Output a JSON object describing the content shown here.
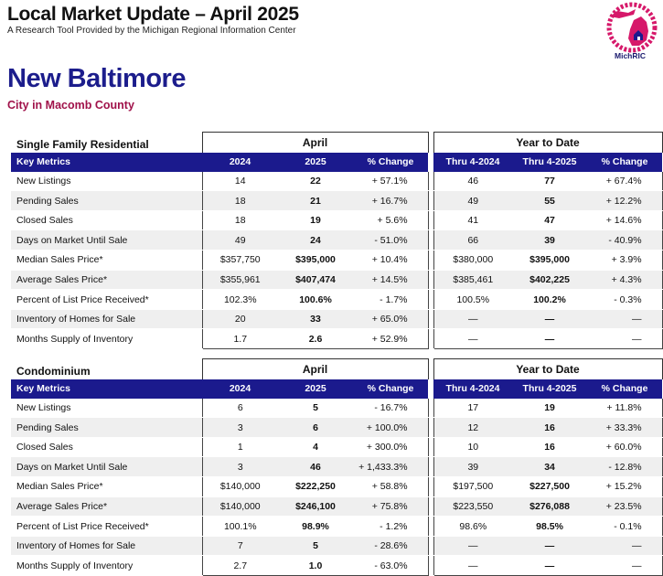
{
  "header": {
    "title": "Local Market Update – April 2025",
    "subtitle": "A Research Tool Provided by the Michigan Regional Information Center",
    "logo_text": "MichRIC",
    "logo_ring_text": "Michigan Regional Information Center",
    "brand_color": "#1b1a8d",
    "logo_color": "#d6186a"
  },
  "location": {
    "city": "New Baltimore",
    "county": "City in Macomb County"
  },
  "columns": {
    "key_metrics": "Key Metrics",
    "group_april": "April",
    "group_ytd": "Year to Date",
    "y2024": "2024",
    "y2025": "2025",
    "pct_change": "% Change",
    "ytd_2024": "Thru 4-2024",
    "ytd_2025": "Thru 4-2025"
  },
  "sections": [
    {
      "title": "Single Family Residential",
      "rows": [
        {
          "metric": "New Listings",
          "a2024": "14",
          "a2025": "22",
          "achg": "+ 57.1%",
          "y2024": "46",
          "y2025": "77",
          "ychg": "+ 67.4%"
        },
        {
          "metric": "Pending Sales",
          "a2024": "18",
          "a2025": "21",
          "achg": "+ 16.7%",
          "y2024": "49",
          "y2025": "55",
          "ychg": "+ 12.2%"
        },
        {
          "metric": "Closed Sales",
          "a2024": "18",
          "a2025": "19",
          "achg": "+ 5.6%",
          "y2024": "41",
          "y2025": "47",
          "ychg": "+ 14.6%"
        },
        {
          "metric": "Days on Market Until Sale",
          "a2024": "49",
          "a2025": "24",
          "achg": "- 51.0%",
          "y2024": "66",
          "y2025": "39",
          "ychg": "- 40.9%"
        },
        {
          "metric": "Median Sales Price*",
          "a2024": "$357,750",
          "a2025": "$395,000",
          "achg": "+ 10.4%",
          "y2024": "$380,000",
          "y2025": "$395,000",
          "ychg": "+ 3.9%"
        },
        {
          "metric": "Average Sales Price*",
          "a2024": "$355,961",
          "a2025": "$407,474",
          "achg": "+ 14.5%",
          "y2024": "$385,461",
          "y2025": "$402,225",
          "ychg": "+ 4.3%"
        },
        {
          "metric": "Percent of List Price Received*",
          "a2024": "102.3%",
          "a2025": "100.6%",
          "achg": "- 1.7%",
          "y2024": "100.5%",
          "y2025": "100.2%",
          "ychg": "- 0.3%"
        },
        {
          "metric": "Inventory of Homes for Sale",
          "a2024": "20",
          "a2025": "33",
          "achg": "+ 65.0%",
          "y2024": "—",
          "y2025": "—",
          "ychg": "—"
        },
        {
          "metric": "Months Supply of Inventory",
          "a2024": "1.7",
          "a2025": "2.6",
          "achg": "+ 52.9%",
          "y2024": "—",
          "y2025": "—",
          "ychg": "—"
        }
      ]
    },
    {
      "title": "Condominium",
      "rows": [
        {
          "metric": "New Listings",
          "a2024": "6",
          "a2025": "5",
          "achg": "- 16.7%",
          "y2024": "17",
          "y2025": "19",
          "ychg": "+ 11.8%"
        },
        {
          "metric": "Pending Sales",
          "a2024": "3",
          "a2025": "6",
          "achg": "+ 100.0%",
          "y2024": "12",
          "y2025": "16",
          "ychg": "+ 33.3%"
        },
        {
          "metric": "Closed Sales",
          "a2024": "1",
          "a2025": "4",
          "achg": "+ 300.0%",
          "y2024": "10",
          "y2025": "16",
          "ychg": "+ 60.0%"
        },
        {
          "metric": "Days on Market Until Sale",
          "a2024": "3",
          "a2025": "46",
          "achg": "+ 1,433.3%",
          "y2024": "39",
          "y2025": "34",
          "ychg": "- 12.8%"
        },
        {
          "metric": "Median Sales Price*",
          "a2024": "$140,000",
          "a2025": "$222,250",
          "achg": "+ 58.8%",
          "y2024": "$197,500",
          "y2025": "$227,500",
          "ychg": "+ 15.2%"
        },
        {
          "metric": "Average Sales Price*",
          "a2024": "$140,000",
          "a2025": "$246,100",
          "achg": "+ 75.8%",
          "y2024": "$223,550",
          "y2025": "$276,088",
          "ychg": "+ 23.5%"
        },
        {
          "metric": "Percent of List Price Received*",
          "a2024": "100.1%",
          "a2025": "98.9%",
          "achg": "- 1.2%",
          "y2024": "98.6%",
          "y2025": "98.5%",
          "ychg": "- 0.1%"
        },
        {
          "metric": "Inventory of Homes for Sale",
          "a2024": "7",
          "a2025": "5",
          "achg": "- 28.6%",
          "y2024": "—",
          "y2025": "—",
          "ychg": "—"
        },
        {
          "metric": "Months Supply of Inventory",
          "a2024": "2.7",
          "a2025": "1.0",
          "achg": "- 63.0%",
          "y2024": "—",
          "y2025": "—",
          "ychg": "—"
        }
      ]
    }
  ]
}
